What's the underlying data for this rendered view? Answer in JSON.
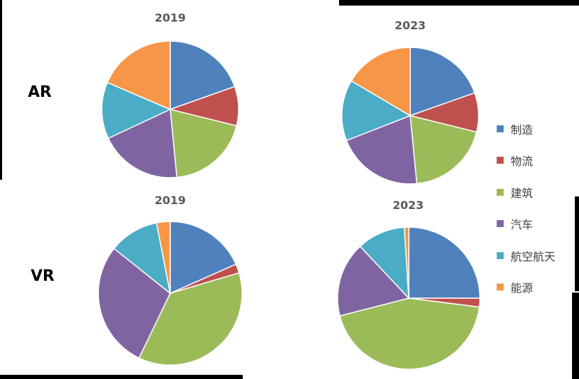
{
  "row_labels": {
    "ar": "AR",
    "vr": "VR"
  },
  "legend": [
    {
      "name": "制造",
      "color": "#4F81BD"
    },
    {
      "name": "物流",
      "color": "#C0504D"
    },
    {
      "name": "建筑",
      "color": "#9BBB59"
    },
    {
      "name": "汽车",
      "color": "#8064A2"
    },
    {
      "name": "航空航天",
      "color": "#4BACC6"
    },
    {
      "name": "能源",
      "color": "#F79646"
    }
  ],
  "chart_data": [
    {
      "type": "pie",
      "title": "2019",
      "row": "AR",
      "categories": [
        "制造",
        "物流",
        "建筑",
        "汽车",
        "航空航天",
        "能源"
      ],
      "values": [
        19,
        9,
        19,
        19,
        13,
        18
      ]
    },
    {
      "type": "pie",
      "title": "2023",
      "row": "AR",
      "categories": [
        "制造",
        "物流",
        "建筑",
        "汽车",
        "航空航天",
        "能源"
      ],
      "values": [
        19,
        9,
        19,
        20,
        14,
        16
      ]
    },
    {
      "type": "pie",
      "title": "2019",
      "row": "VR",
      "categories": [
        "制造",
        "物流",
        "建筑",
        "汽车",
        "航空航天",
        "能源"
      ],
      "values": [
        18,
        2,
        36,
        28,
        11,
        3
      ]
    },
    {
      "type": "pie",
      "title": "2023",
      "row": "VR",
      "categories": [
        "制造",
        "物流",
        "建筑",
        "汽车",
        "航空航天",
        "能源"
      ],
      "values": [
        25,
        2,
        44,
        17,
        11,
        1
      ]
    }
  ]
}
